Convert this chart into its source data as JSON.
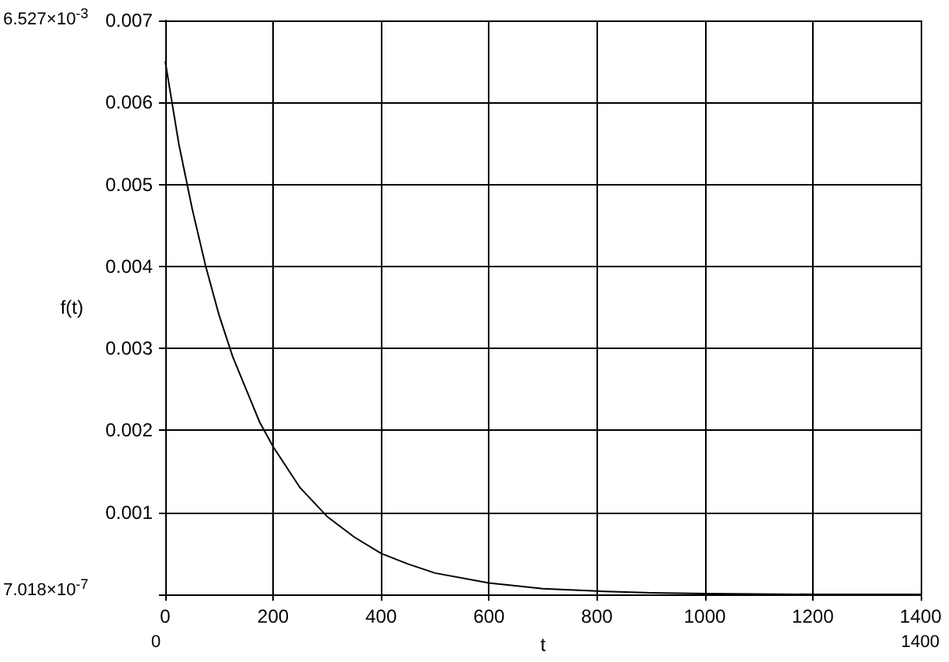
{
  "chart_data": {
    "type": "line",
    "xlabel": "t",
    "ylabel": "f(t)",
    "annotations": [
      "6.527×10$^{-3}$",
      "7.018×10$^{-7}$",
      "0",
      "1400"
    ],
    "x": [
      0,
      25,
      50,
      75,
      100,
      125,
      150,
      175,
      200,
      250,
      300,
      350,
      400,
      450,
      500,
      600,
      700,
      800,
      900,
      1000,
      1200,
      1400
    ],
    "series": [
      {
        "color": "#000000",
        "values": [
          0.0065,
          0.0055,
          0.0047,
          0.004,
          0.0034,
          0.0029,
          0.0025,
          0.0021,
          0.0018,
          0.0013,
          0.00095,
          0.0007,
          0.0005,
          0.00037,
          0.00026,
          0.00014,
          7e-05,
          4e-05,
          2e-05,
          1e-05,
          0,
          0
        ]
      }
    ],
    "xlim": [
      0,
      1400
    ],
    "xticks": [
      0,
      200,
      400,
      600,
      800,
      1000,
      1200,
      1400
    ],
    "ylim": [
      0,
      0.007
    ],
    "yticks": [
      {
        "value": 0,
        "label": null
      },
      0.001,
      0.002,
      0.003,
      0.004,
      0.005,
      0.006,
      0.007
    ],
    "grid": true,
    "marker": "none",
    "line_style": "solid"
  }
}
